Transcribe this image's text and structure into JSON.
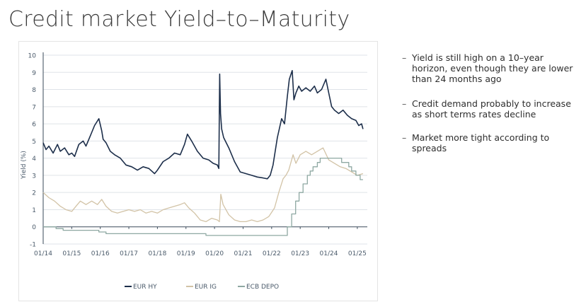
{
  "title": "Credit market Yield–to–Maturity",
  "notes": [
    "Yield is still high on a 10–year horizon, even though they are lower than 24 months ago",
    "Credit demand probably to increase as short terms rates decline",
    "Market more tight according to spreads"
  ],
  "note_dash": "–",
  "chart_data": {
    "type": "line",
    "ylabel": "Yield (%)",
    "xlabel": "",
    "ylim": [
      -1,
      10
    ],
    "yticks": [
      -1,
      0,
      1,
      2,
      3,
      4,
      5,
      6,
      7,
      8,
      9,
      10
    ],
    "xlim": [
      2014.0,
      2025.35
    ],
    "xticks": [
      2014,
      2015,
      2016,
      2017,
      2018,
      2019,
      2020,
      2021,
      2022,
      2023,
      2024,
      2025
    ],
    "xtick_labels": [
      "01/14",
      "01/15",
      "01/16",
      "01/17",
      "01/18",
      "01/19",
      "01/20",
      "01/21",
      "01/22",
      "01/23",
      "01/24",
      "01/25"
    ],
    "grid": "horizontal",
    "legend_position": "bottom",
    "series": [
      {
        "name": "EUR HY",
        "color": "#1c2e4a",
        "x": [
          2014.0,
          2014.1,
          2014.2,
          2014.35,
          2014.5,
          2014.6,
          2014.75,
          2014.9,
          2015.0,
          2015.1,
          2015.25,
          2015.4,
          2015.5,
          2015.65,
          2015.8,
          2015.95,
          2016.05,
          2016.1,
          2016.2,
          2016.35,
          2016.5,
          2016.7,
          2016.9,
          2017.1,
          2017.3,
          2017.5,
          2017.7,
          2017.9,
          2018.0,
          2018.2,
          2018.4,
          2018.6,
          2018.8,
          2018.95,
          2019.05,
          2019.2,
          2019.4,
          2019.6,
          2019.8,
          2019.95,
          2020.1,
          2020.15,
          2020.18,
          2020.21,
          2020.25,
          2020.32,
          2020.5,
          2020.7,
          2020.9,
          2021.1,
          2021.3,
          2021.5,
          2021.7,
          2021.85,
          2021.95,
          2022.05,
          2022.2,
          2022.35,
          2022.45,
          2022.55,
          2022.62,
          2022.72,
          2022.78,
          2022.85,
          2022.95,
          2023.05,
          2023.2,
          2023.35,
          2023.5,
          2023.6,
          2023.75,
          2023.9,
          2024.0,
          2024.1,
          2024.2,
          2024.35,
          2024.5,
          2024.65,
          2024.8,
          2024.95,
          2025.05,
          2025.15,
          2025.2
        ],
        "values": [
          4.9,
          4.5,
          4.7,
          4.3,
          4.8,
          4.4,
          4.6,
          4.2,
          4.3,
          4.1,
          4.8,
          5.0,
          4.7,
          5.3,
          5.9,
          6.3,
          5.6,
          5.1,
          4.9,
          4.4,
          4.2,
          4.0,
          3.6,
          3.5,
          3.3,
          3.5,
          3.4,
          3.1,
          3.3,
          3.8,
          4.0,
          4.3,
          4.2,
          4.8,
          5.4,
          5.0,
          4.4,
          4.0,
          3.9,
          3.7,
          3.6,
          3.4,
          8.9,
          6.6,
          5.7,
          5.2,
          4.6,
          3.8,
          3.2,
          3.1,
          3.0,
          2.9,
          2.85,
          2.8,
          3.0,
          3.6,
          5.2,
          6.3,
          6.0,
          7.6,
          8.6,
          9.1,
          7.4,
          7.8,
          8.2,
          7.9,
          8.1,
          7.9,
          8.2,
          7.8,
          8.0,
          8.6,
          7.8,
          7.0,
          6.8,
          6.6,
          6.8,
          6.5,
          6.3,
          6.2,
          5.9,
          6.0,
          5.7
        ]
      },
      {
        "name": "EUR IG",
        "color": "#d2c3a6",
        "x": [
          2014.0,
          2014.2,
          2014.4,
          2014.6,
          2014.8,
          2015.0,
          2015.15,
          2015.3,
          2015.5,
          2015.7,
          2015.9,
          2016.05,
          2016.2,
          2016.4,
          2016.6,
          2016.8,
          2017.0,
          2017.2,
          2017.4,
          2017.6,
          2017.8,
          2018.0,
          2018.2,
          2018.4,
          2018.6,
          2018.8,
          2018.95,
          2019.1,
          2019.3,
          2019.5,
          2019.7,
          2019.9,
          2020.1,
          2020.17,
          2020.22,
          2020.3,
          2020.5,
          2020.7,
          2020.9,
          2021.1,
          2021.3,
          2021.5,
          2021.7,
          2021.9,
          2022.1,
          2022.25,
          2022.4,
          2022.5,
          2022.6,
          2022.75,
          2022.85,
          2023.0,
          2023.2,
          2023.4,
          2023.6,
          2023.8,
          2024.0,
          2024.2,
          2024.4,
          2024.6,
          2024.8,
          2025.0,
          2025.2
        ],
        "values": [
          2.0,
          1.7,
          1.5,
          1.2,
          1.0,
          0.9,
          1.2,
          1.5,
          1.3,
          1.5,
          1.3,
          1.6,
          1.2,
          0.9,
          0.8,
          0.9,
          1.0,
          0.9,
          1.0,
          0.8,
          0.9,
          0.8,
          1.0,
          1.1,
          1.2,
          1.3,
          1.4,
          1.1,
          0.8,
          0.4,
          0.3,
          0.5,
          0.4,
          0.3,
          1.9,
          1.3,
          0.7,
          0.4,
          0.3,
          0.3,
          0.4,
          0.3,
          0.4,
          0.6,
          1.1,
          2.0,
          2.8,
          3.0,
          3.3,
          4.2,
          3.7,
          4.2,
          4.4,
          4.2,
          4.4,
          4.6,
          3.9,
          3.7,
          3.5,
          3.4,
          3.2,
          3.0,
          3.1
        ]
      },
      {
        "name": "ECB DEPO",
        "color": "#8ea8a2",
        "x": [
          2014.0,
          2014.45,
          2014.45,
          2014.7,
          2014.7,
          2015.95,
          2015.95,
          2016.2,
          2016.2,
          2019.7,
          2019.7,
          2022.55,
          2022.55,
          2022.7,
          2022.7,
          2022.84,
          2022.84,
          2022.96,
          2022.96,
          2023.1,
          2023.1,
          2023.25,
          2023.25,
          2023.35,
          2023.35,
          2023.45,
          2023.45,
          2023.6,
          2023.6,
          2023.7,
          2023.7,
          2024.45,
          2024.45,
          2024.7,
          2024.7,
          2024.8,
          2024.8,
          2024.95,
          2024.95,
          2025.1,
          2025.1,
          2025.2
        ],
        "values": [
          0.0,
          0.0,
          -0.1,
          -0.1,
          -0.2,
          -0.2,
          -0.3,
          -0.3,
          -0.4,
          -0.4,
          -0.5,
          -0.5,
          0.0,
          0.0,
          0.75,
          0.75,
          1.5,
          1.5,
          2.0,
          2.0,
          2.5,
          2.5,
          3.0,
          3.0,
          3.25,
          3.25,
          3.5,
          3.5,
          3.75,
          3.75,
          4.0,
          4.0,
          3.75,
          3.75,
          3.5,
          3.5,
          3.25,
          3.25,
          3.0,
          3.0,
          2.75,
          2.75
        ]
      }
    ]
  }
}
